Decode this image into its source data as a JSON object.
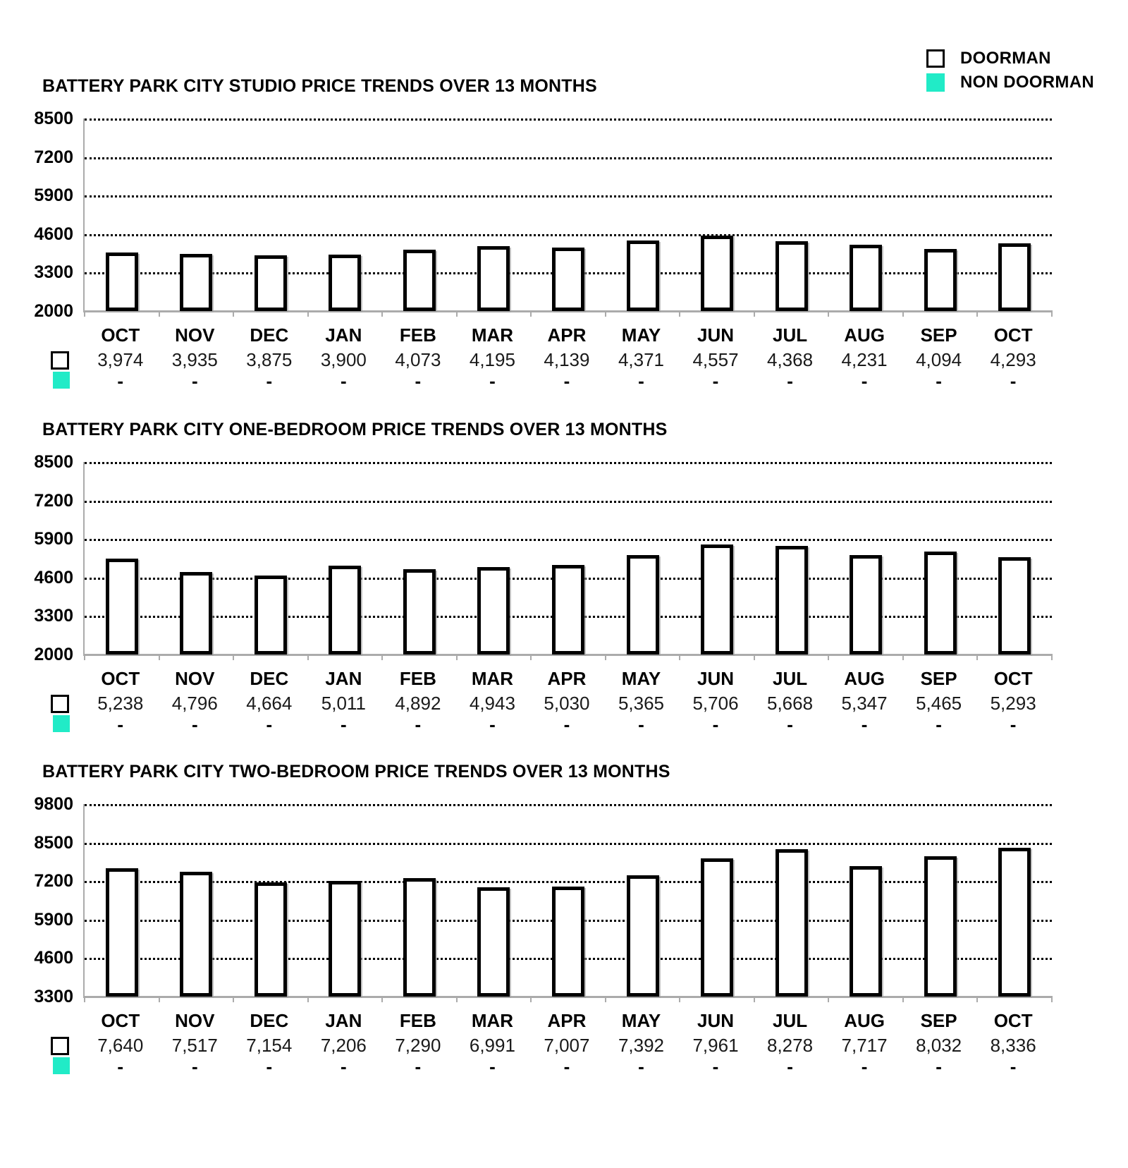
{
  "legend": {
    "items": [
      {
        "label": "DOORMAN",
        "swatch": "outlined-white-square"
      },
      {
        "label": "NON DOORMAN",
        "swatch": "teal-filled-square"
      }
    ]
  },
  "colors": {
    "non_doorman_teal": "#21EBC7",
    "bar_fill": "#FFFFFF",
    "bar_border": "#000000",
    "axis_gray": "#ABABAB",
    "gridline_black": "#000000"
  },
  "no_data_symbol": "-",
  "chart_data": [
    {
      "type": "bar",
      "title": "BATTERY PARK CITY STUDIO PRICE TRENDS OVER 13 MONTHS",
      "categories": [
        "OCT",
        "NOV",
        "DEC",
        "JAN",
        "FEB",
        "MAR",
        "APR",
        "MAY",
        "JUN",
        "JUL",
        "AUG",
        "SEP",
        "OCT"
      ],
      "series": [
        {
          "name": "DOORMAN",
          "values": [
            3974,
            3935,
            3875,
            3900,
            4073,
            4195,
            4139,
            4371,
            4557,
            4368,
            4231,
            4094,
            4293
          ]
        },
        {
          "name": "NON DOORMAN",
          "values": [
            "-",
            "-",
            "-",
            "-",
            "-",
            "-",
            "-",
            "-",
            "-",
            "-",
            "-",
            "-",
            "-"
          ]
        }
      ],
      "ylim": [
        2000,
        8500
      ],
      "yticks": [
        8500,
        7200,
        5900,
        4600,
        3300,
        2000
      ],
      "grid": "dotted-horizontal",
      "legend_position": "top-right"
    },
    {
      "type": "bar",
      "title": "BATTERY PARK CITY ONE-BEDROOM PRICE TRENDS OVER 13 MONTHS",
      "categories": [
        "OCT",
        "NOV",
        "DEC",
        "JAN",
        "FEB",
        "MAR",
        "APR",
        "MAY",
        "JUN",
        "JUL",
        "AUG",
        "SEP",
        "OCT"
      ],
      "series": [
        {
          "name": "DOORMAN",
          "values": [
            5238,
            4796,
            4664,
            5011,
            4892,
            4943,
            5030,
            5365,
            5706,
            5668,
            5347,
            5465,
            5293
          ]
        },
        {
          "name": "NON DOORMAN",
          "values": [
            "-",
            "-",
            "-",
            "-",
            "-",
            "-",
            "-",
            "-",
            "-",
            "-",
            "-",
            "-",
            "-"
          ]
        }
      ],
      "ylim": [
        2000,
        8500
      ],
      "yticks": [
        8500,
        7200,
        5900,
        4600,
        3300,
        2000
      ],
      "grid": "dotted-horizontal",
      "legend_position": "top-right"
    },
    {
      "type": "bar",
      "title": "BATTERY PARK CITY TWO-BEDROOM PRICE TRENDS OVER 13 MONTHS",
      "categories": [
        "OCT",
        "NOV",
        "DEC",
        "JAN",
        "FEB",
        "MAR",
        "APR",
        "MAY",
        "JUN",
        "JUL",
        "AUG",
        "SEP",
        "OCT"
      ],
      "series": [
        {
          "name": "DOORMAN",
          "values": [
            7640,
            7517,
            7154,
            7206,
            7290,
            6991,
            7007,
            7392,
            7961,
            8278,
            7717,
            8032,
            8336
          ]
        },
        {
          "name": "NON DOORMAN",
          "values": [
            "-",
            "-",
            "-",
            "-",
            "-",
            "-",
            "-",
            "-",
            "-",
            "-",
            "-",
            "-",
            "-"
          ]
        }
      ],
      "ylim": [
        3300,
        9800
      ],
      "yticks": [
        9800,
        8500,
        7200,
        5900,
        4600,
        3300
      ],
      "grid": "dotted-horizontal",
      "legend_position": "top-right"
    }
  ]
}
